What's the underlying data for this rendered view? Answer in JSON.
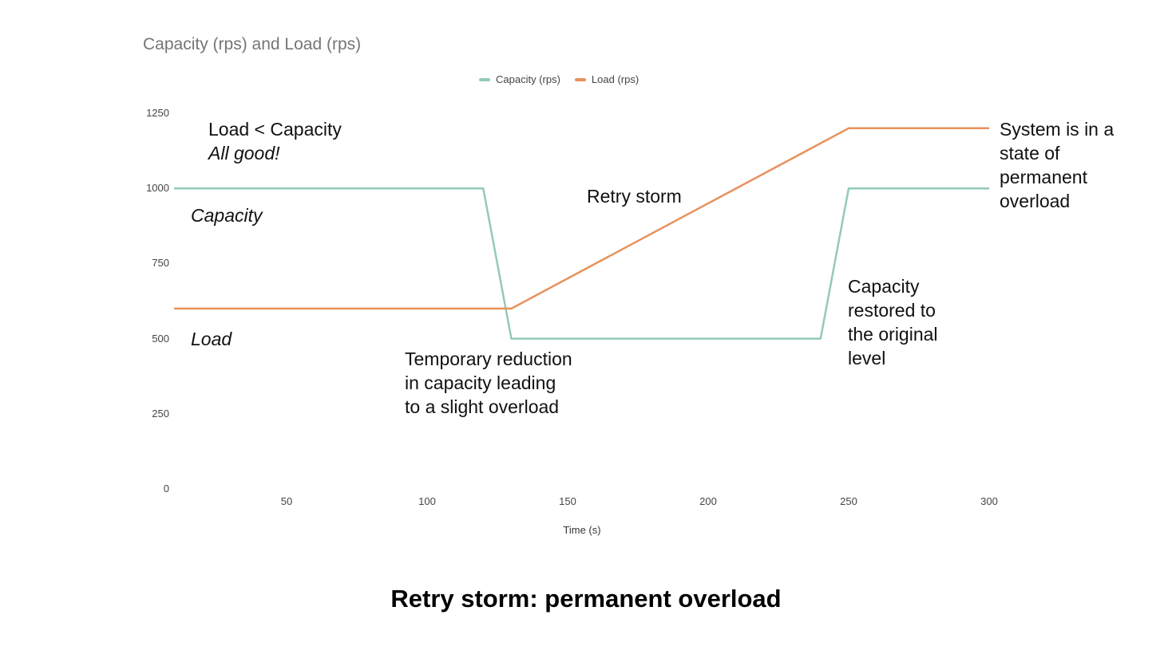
{
  "colors": {
    "capacity": "#93c9b8",
    "load": "#e8915b"
  },
  "caption": "Retry storm: permanent overload",
  "chart_data": {
    "type": "line",
    "title": "Capacity (rps) and Load (rps)",
    "xlabel": "Time (s)",
    "ylabel": "",
    "xlim": [
      10,
      300
    ],
    "ylim": [
      0,
      1250
    ],
    "xticks": [
      "50",
      "100",
      "150",
      "200",
      "250",
      "300"
    ],
    "yticks": [
      "1250",
      "1000",
      "750",
      "500",
      "250",
      "0"
    ],
    "grid": false,
    "legend_position": "top",
    "series": [
      {
        "name": "Capacity (rps)",
        "color": "#93c9b8",
        "x": [
          10,
          120,
          130,
          240,
          250,
          300
        ],
        "y": [
          1000,
          1000,
          500,
          500,
          1000,
          1000
        ]
      },
      {
        "name": "Load (rps)",
        "color": "#e8915b",
        "x": [
          10,
          130,
          250,
          300
        ],
        "y": [
          600,
          600,
          1200,
          1200
        ]
      }
    ],
    "annotations": {
      "load_lt_capacity": [
        "Load < Capacity",
        "All good!"
      ],
      "capacity_label": "Capacity",
      "load_label": "Load",
      "temporary_reduction": [
        "Temporary reduction",
        "in capacity leading",
        "to a slight overload"
      ],
      "retry_storm": "Retry storm",
      "capacity_restored": [
        "Capacity",
        "restored to",
        "the original",
        "level"
      ],
      "permanent_overload": [
        "System is in a",
        "state of",
        "permanent",
        "overload"
      ]
    }
  }
}
